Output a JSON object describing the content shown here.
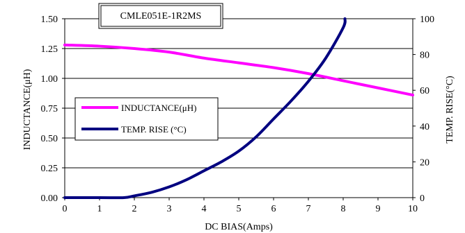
{
  "chart_data": {
    "type": "line",
    "title": "CMLE051E-1R2MS",
    "xlabel": "DC BIAS(Amps)",
    "ylabel_left": "INDUCTANCE(μH)",
    "ylabel_right": "TEMP. RISE(°C)",
    "xlim": [
      0,
      10
    ],
    "ylim_left": [
      0,
      1.5
    ],
    "ylim_right": [
      0,
      100
    ],
    "x_ticks": [
      "0",
      "1",
      "2",
      "3",
      "4",
      "5",
      "6",
      "7",
      "8",
      "9",
      "10"
    ],
    "y_left_ticks": [
      "0.00",
      "0.25",
      "0.50",
      "0.75",
      "1.00",
      "1.25",
      "1.50"
    ],
    "y_right_ticks": [
      "0",
      "20",
      "40",
      "60",
      "80",
      "100"
    ],
    "grid": "horizontal",
    "legend_position": "middle-left",
    "series": [
      {
        "name": "INDUCTANCE(μH)",
        "axis": "left",
        "color": "#ff00ff",
        "x": [
          0,
          1,
          2,
          3,
          4,
          5,
          6,
          7,
          8,
          9,
          10
        ],
        "values": [
          1.28,
          1.27,
          1.25,
          1.22,
          1.17,
          1.13,
          1.09,
          1.04,
          0.98,
          0.92,
          0.86
        ]
      },
      {
        "name": "TEMP. RISE (°C)",
        "axis": "right",
        "color": "#000080",
        "x": [
          0,
          1,
          1.7,
          2,
          2.5,
          3,
          3.5,
          4,
          4.5,
          5,
          5.5,
          6,
          6.5,
          7,
          7.5,
          8,
          8.05
        ],
        "values": [
          0,
          0,
          0,
          1,
          3,
          6,
          10,
          15,
          20,
          26,
          34,
          44,
          54,
          65,
          78,
          95,
          100
        ]
      }
    ]
  }
}
